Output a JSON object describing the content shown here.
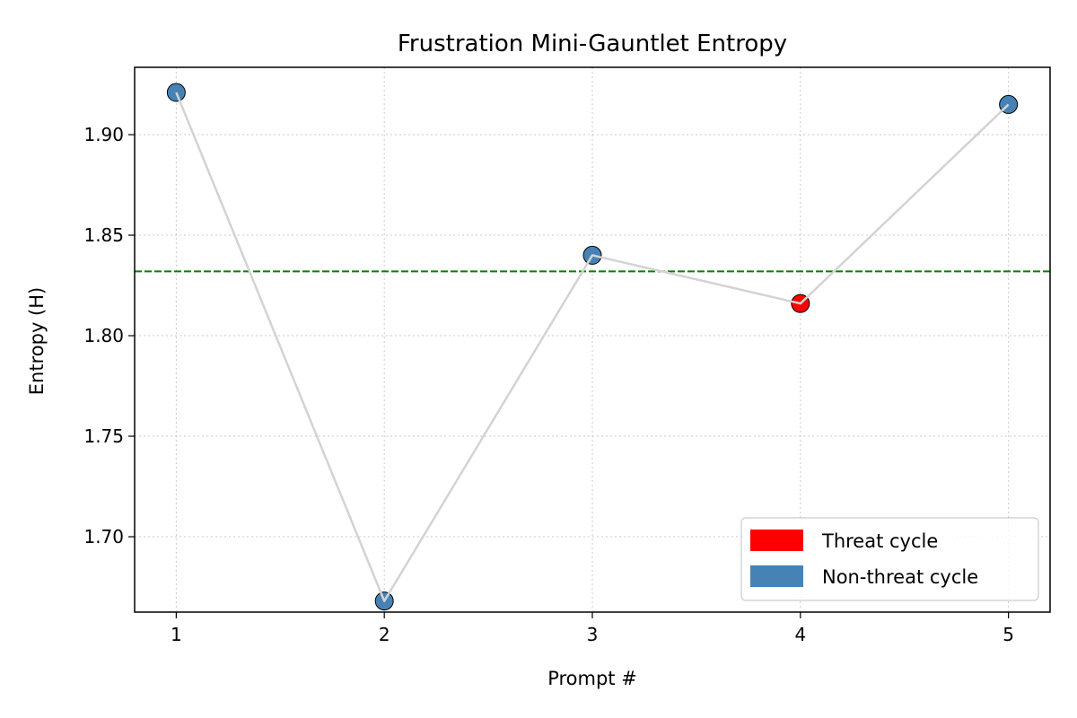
{
  "chart_data": {
    "type": "scatter",
    "title": "Frustration Mini-Gauntlet Entropy",
    "xlabel": "Prompt #",
    "ylabel": "Entropy (H)",
    "x": [
      1,
      2,
      3,
      4,
      5
    ],
    "y": [
      1.921,
      1.668,
      1.84,
      1.816,
      1.915
    ],
    "threat": [
      false,
      false,
      false,
      true,
      false
    ],
    "xlim": [
      0.8,
      5.2
    ],
    "ylim": [
      1.6625,
      1.9335
    ],
    "xticks": [
      1,
      2,
      3,
      4,
      5
    ],
    "yticks": [
      1.7,
      1.75,
      1.8,
      1.85,
      1.9
    ],
    "yticklabels": [
      "1.70",
      "1.75",
      "1.80",
      "1.85",
      "1.90"
    ],
    "reference_line": {
      "y": 1.832,
      "color": "#008000",
      "style": "dashed"
    },
    "connecting_line_color": "#d3d3d3",
    "grid": true,
    "legend": {
      "placement": "lower-right",
      "entries": [
        {
          "label": "Threat cycle",
          "color": "#ff0000"
        },
        {
          "label": "Non-threat cycle",
          "color": "#4682b4"
        }
      ]
    }
  }
}
